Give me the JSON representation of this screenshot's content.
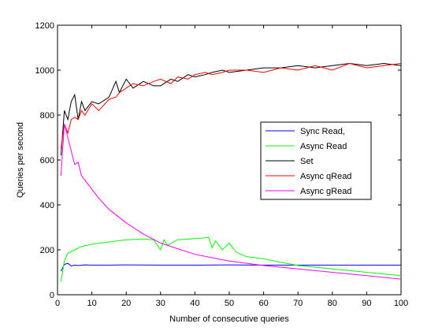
{
  "chart_data": {
    "type": "line",
    "xlabel": "Number of consecutive queries",
    "ylabel": "Queries per second",
    "xlim": [
      0,
      100
    ],
    "ylim": [
      0,
      1200
    ],
    "xticks": [
      0,
      10,
      20,
      30,
      40,
      50,
      60,
      70,
      80,
      90,
      100
    ],
    "yticks": [
      0,
      200,
      400,
      600,
      800,
      1000,
      1200
    ],
    "grid": false,
    "legend_position": "center-right",
    "series": [
      {
        "name": "Sync Read,",
        "color": "#0000ff",
        "x": [
          1,
          2,
          3,
          4,
          5,
          6,
          8,
          10,
          15,
          20,
          30,
          40,
          50,
          60,
          70,
          80,
          90,
          100
        ],
        "y": [
          105,
          135,
          140,
          128,
          132,
          130,
          133,
          132,
          132,
          133,
          132,
          132,
          133,
          132,
          132,
          132,
          132,
          132
        ]
      },
      {
        "name": "Async Read",
        "color": "#00ff00",
        "x": [
          1,
          2,
          3,
          5,
          7,
          10,
          15,
          20,
          25,
          28,
          30,
          31,
          32,
          35,
          40,
          44,
          45,
          46,
          48,
          50,
          52,
          55,
          60,
          65,
          70,
          80,
          90,
          100
        ],
        "y": [
          60,
          150,
          185,
          200,
          215,
          225,
          235,
          245,
          248,
          245,
          200,
          245,
          220,
          245,
          250,
          255,
          210,
          240,
          200,
          230,
          190,
          170,
          160,
          145,
          130,
          115,
          100,
          85
        ]
      },
      {
        "name": "Set",
        "color": "#000000",
        "x": [
          1,
          2,
          3,
          4,
          5,
          6,
          7,
          8,
          10,
          12,
          15,
          17,
          18,
          20,
          22,
          25,
          28,
          30,
          33,
          35,
          38,
          40,
          43,
          45,
          48,
          50,
          55,
          60,
          65,
          70,
          75,
          80,
          85,
          90,
          95,
          100
        ],
        "y": [
          620,
          820,
          780,
          860,
          890,
          780,
          860,
          820,
          860,
          850,
          880,
          950,
          900,
          960,
          920,
          950,
          930,
          930,
          960,
          950,
          980,
          970,
          980,
          990,
          1000,
          990,
          1000,
          1010,
          1010,
          1020,
          1010,
          1020,
          1030,
          1020,
          1030,
          1020
        ]
      },
      {
        "name": "Async qRead",
        "color": "#ff0000",
        "x": [
          1,
          2,
          3,
          4,
          5,
          6,
          7,
          8,
          10,
          12,
          15,
          17,
          18,
          20,
          22,
          25,
          28,
          30,
          33,
          35,
          38,
          40,
          43,
          45,
          48,
          50,
          55,
          60,
          65,
          70,
          75,
          80,
          85,
          90,
          95,
          100
        ],
        "y": [
          650,
          760,
          720,
          780,
          790,
          780,
          820,
          800,
          850,
          820,
          870,
          880,
          900,
          920,
          940,
          930,
          950,
          960,
          940,
          970,
          960,
          980,
          990,
          980,
          990,
          1000,
          1000,
          990,
          1010,
          1000,
          1020,
          1000,
          1030,
          1010,
          1020,
          1030
        ]
      },
      {
        "name": "Async gRead",
        "color": "#ff00ff",
        "x": [
          1,
          2,
          3,
          4,
          5,
          6,
          7,
          8,
          10,
          12,
          15,
          20,
          25,
          30,
          35,
          40,
          45,
          50,
          60,
          70,
          80,
          90,
          100
        ],
        "y": [
          530,
          760,
          700,
          640,
          580,
          590,
          530,
          510,
          470,
          430,
          380,
          320,
          270,
          230,
          205,
          180,
          165,
          150,
          130,
          115,
          100,
          85,
          70
        ]
      }
    ]
  }
}
